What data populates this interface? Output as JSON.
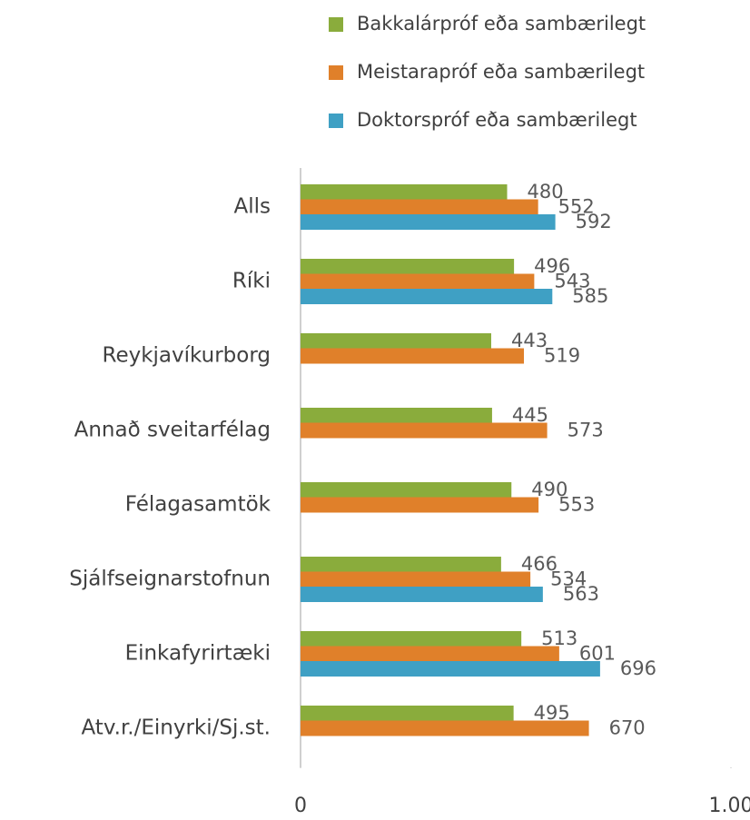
{
  "chart_data": {
    "type": "hbar",
    "categories": [
      "Alls",
      "Ríki",
      "Reykjavíkurborg",
      "Annað sveitarfélag",
      "Félagasamtök",
      "Sjálfseignarstofnun",
      "Einkafyrirtæki",
      "Atv.r./Einyrki/Sj.st."
    ],
    "series": [
      {
        "name": "Bakkalárpróf eða sambærilegt",
        "color": "#8aac3c",
        "values": [
          480,
          496,
          443,
          445,
          490,
          466,
          513,
          495
        ]
      },
      {
        "name": "Meistarapróf eða sambærilegt",
        "color": "#e0802a",
        "values": [
          552,
          543,
          519,
          573,
          553,
          534,
          601,
          670
        ]
      },
      {
        "name": "Doktorspróf eða sambærilegt",
        "color": "#3fa0c4",
        "values": [
          592,
          585,
          null,
          null,
          null,
          563,
          696,
          null
        ]
      }
    ],
    "xlim": [
      0,
      1000
    ],
    "xticks": [
      0,
      {
        "value": 1000,
        "label": "1.00"
      }
    ],
    "legend": "top"
  }
}
